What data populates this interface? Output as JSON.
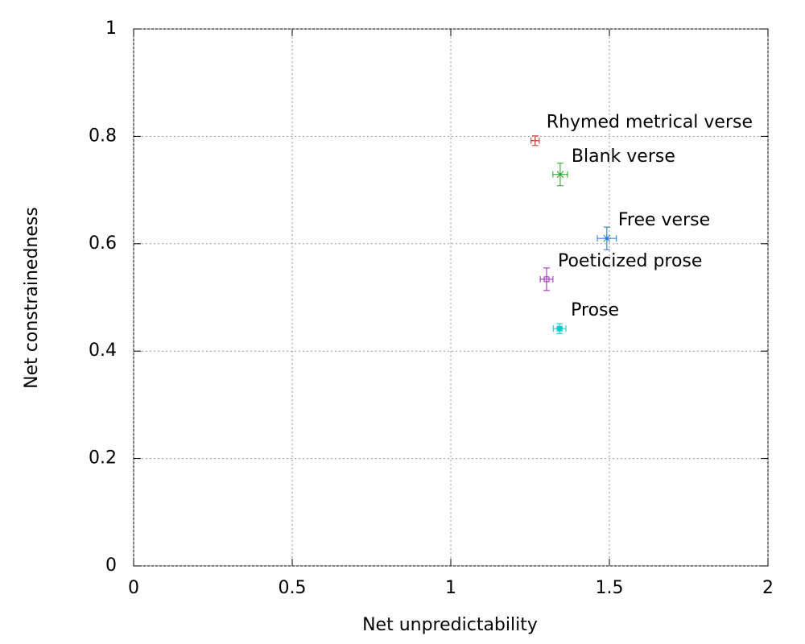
{
  "chart_data": {
    "type": "scatter",
    "x_label": "Net unpredictability",
    "y_label": "Net constrainedness",
    "xlim": [
      0,
      2
    ],
    "ylim": [
      0,
      1
    ],
    "xticks": [
      0,
      0.5,
      1,
      1.5,
      2
    ],
    "yticks": [
      0,
      0.2,
      0.4,
      0.6,
      0.8,
      1
    ],
    "grid": true,
    "series": [
      {
        "name": "Rhymed metrical verse",
        "color": "#c0392b",
        "marker": "plus",
        "x": [
          1.266
        ],
        "y": [
          0.792
        ],
        "xerr": [
          0.013
        ],
        "yerr": [
          0.009
        ]
      },
      {
        "name": "Blank verse",
        "color": "#22a022",
        "marker": "cross",
        "x": [
          1.345
        ],
        "y": [
          0.729
        ],
        "xerr": [
          0.023
        ],
        "yerr": [
          0.021
        ]
      },
      {
        "name": "Free verse",
        "color": "#1e78d8",
        "marker": "star",
        "x": [
          1.492
        ],
        "y": [
          0.61
        ],
        "xerr": [
          0.03
        ],
        "yerr": [
          0.021
        ]
      },
      {
        "name": "Poeticized prose",
        "color": "#a020c0",
        "marker": "square",
        "x": [
          1.302
        ],
        "y": [
          0.534
        ],
        "xerr": [
          0.02
        ],
        "yerr": [
          0.021
        ]
      },
      {
        "name": "Prose",
        "color": "#00c8d0",
        "marker": "filled-square",
        "x": [
          1.343
        ],
        "y": [
          0.442
        ],
        "xerr": [
          0.02
        ],
        "yerr": [
          0.009
        ]
      }
    ]
  }
}
